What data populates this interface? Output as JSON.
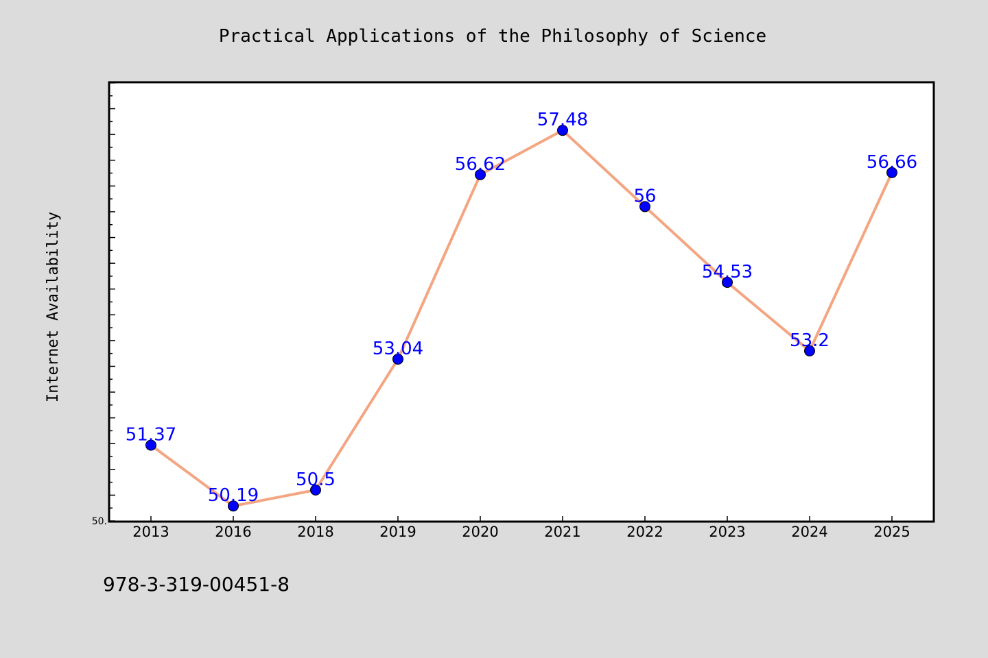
{
  "chart_data": {
    "type": "line",
    "title": "Practical Applications of the Philosophy of Science",
    "xlabel": "",
    "ylabel": "Internet Availability",
    "categories": [
      "2013",
      "2016",
      "2018",
      "2019",
      "2020",
      "2021",
      "2022",
      "2023",
      "2024",
      "2025"
    ],
    "values": [
      51.37,
      50.19,
      50.5,
      53.04,
      56.62,
      57.48,
      56,
      54.53,
      53.2,
      56.66
    ],
    "data_labels": [
      "51.37",
      "50.19",
      "50.5",
      "53.04",
      "56.62",
      "57.48",
      "56",
      "54.53",
      "53.2",
      "56.66"
    ],
    "ylim": [
      49.9,
      58.4
    ],
    "y_tick_labels": [
      {
        "value": 49.9,
        "label": "50."
      }
    ],
    "grid": false,
    "legend": "none",
    "colors": {
      "line": "#f4a582",
      "marker": "#0000ff",
      "data_label": "#0000ff",
      "plot_background": "#ffffff",
      "figure_background": "#dcdcdc"
    }
  },
  "footer": {
    "text": "978-3-319-00451-8"
  }
}
